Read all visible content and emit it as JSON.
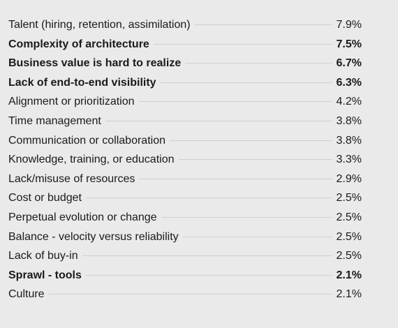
{
  "chart_data": {
    "type": "table",
    "rows": [
      {
        "label": "Talent (hiring, retention, assimilation)",
        "value": "7.9%",
        "bold": false
      },
      {
        "label": "Complexity of architecture",
        "value": "7.5%",
        "bold": true
      },
      {
        "label": "Business value is hard to realize",
        "value": "6.7%",
        "bold": true
      },
      {
        "label": "Lack of end-to-end visibility",
        "value": "6.3%",
        "bold": true
      },
      {
        "label": "Alignment or prioritization",
        "value": "4.2%",
        "bold": false
      },
      {
        "label": "Time management",
        "value": "3.8%",
        "bold": false
      },
      {
        "label": "Communication or collaboration",
        "value": "3.8%",
        "bold": false
      },
      {
        "label": "Knowledge, training, or education",
        "value": "3.3%",
        "bold": false
      },
      {
        "label": "Lack/misuse of resources",
        "value": "2.9%",
        "bold": false
      },
      {
        "label": "Cost or budget",
        "value": "2.5%",
        "bold": false
      },
      {
        "label": "Perpetual evolution or change",
        "value": "2.5%",
        "bold": false
      },
      {
        "label": "Balance - velocity versus reliability",
        "value": "2.5%",
        "bold": false
      },
      {
        "label": "Lack of buy-in",
        "value": "2.5%",
        "bold": false
      },
      {
        "label": "Sprawl - tools",
        "value": "2.1%",
        "bold": true
      },
      {
        "label": "Culture",
        "value": "2.1%",
        "bold": false
      }
    ],
    "colors": {
      "background": "#eaeaea",
      "text": "#1a1a1a",
      "leader": "#cfcfcf"
    }
  }
}
